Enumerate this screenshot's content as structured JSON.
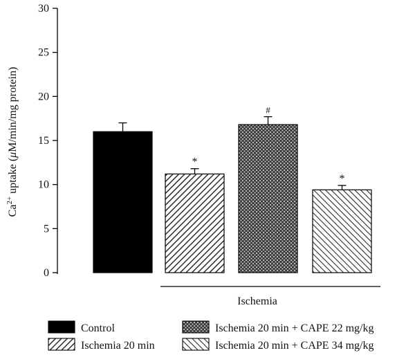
{
  "chart_data": {
    "type": "bar",
    "ylabel_pre": "Ca",
    "ylabel_sup": "2+",
    "ylabel_mid": " uptake (",
    "ylabel_mu": "μ",
    "ylabel_post": "M/min/mg protein)",
    "ylim": [
      0,
      30
    ],
    "yticks": [
      "0",
      "5",
      "10",
      "15",
      "20",
      "25",
      "30"
    ],
    "group_label": "Ischemia",
    "grid": false,
    "legend_position": "bottom",
    "categories": [
      "Control",
      "Ischemia 20 min",
      "Ischemia 20 min + CAPE 22 mg/kg",
      "Ischemia 20 min + CAPE 34 mg/kg"
    ],
    "values": [
      16.0,
      11.2,
      16.8,
      9.4
    ],
    "errors": [
      1.0,
      0.6,
      0.9,
      0.5
    ],
    "annotations": [
      "",
      "*",
      "#",
      "*"
    ],
    "fills": [
      "solid",
      "diag-right",
      "crosshatch",
      "diag-left"
    ],
    "colors": {
      "solid": "#000000",
      "hatch_line": "#333333",
      "background": "#ffffff"
    }
  }
}
